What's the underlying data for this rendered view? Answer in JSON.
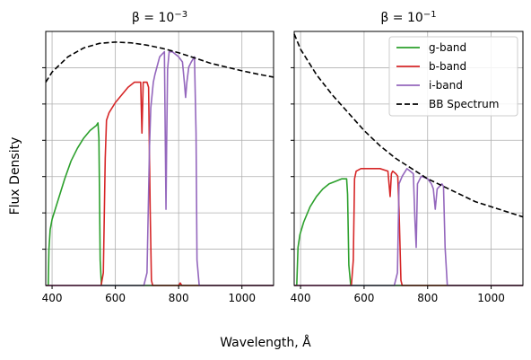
{
  "figure": {
    "xlabel": "Wavelength, Å",
    "ylabel": "Flux Density"
  },
  "legend": {
    "placement": "top-right",
    "entries": [
      {
        "label": "g-band",
        "color": "#2ca02c",
        "style": "solid"
      },
      {
        "label": "b-band",
        "color": "#d62728",
        "style": "solid"
      },
      {
        "label": "i-band",
        "color": "#9467bd",
        "style": "solid"
      },
      {
        "label": "BB Spectrum",
        "color": "#000000",
        "style": "dashed"
      }
    ]
  },
  "chart_data": [
    {
      "type": "line",
      "title_prefix": "β = 10",
      "title_exponent": "−3",
      "xlim": [
        380,
        1100
      ],
      "ylim": [
        0,
        1
      ],
      "xticks": [
        400,
        600,
        800,
        1000
      ],
      "grid": true,
      "series": [
        {
          "name": "g-band",
          "color": "#2ca02c",
          "style": "solid",
          "x": [
            380,
            388,
            390,
            394,
            400,
            420,
            440,
            460,
            480,
            500,
            520,
            540,
            545,
            548,
            552,
            556,
            1100
          ],
          "y": [
            0,
            0,
            0.14,
            0.22,
            0.26,
            0.34,
            0.42,
            0.49,
            0.54,
            0.58,
            0.61,
            0.63,
            0.64,
            0.58,
            0.1,
            0,
            0
          ]
        },
        {
          "name": "b-band",
          "color": "#d62728",
          "style": "solid",
          "x": [
            380,
            555,
            562,
            568,
            572,
            580,
            600,
            620,
            640,
            660,
            675,
            680,
            684,
            688,
            692,
            700,
            705,
            710,
            714,
            718,
            800,
            805,
            810,
            1100
          ],
          "y": [
            0,
            0,
            0.05,
            0.5,
            0.65,
            0.68,
            0.72,
            0.75,
            0.78,
            0.8,
            0.8,
            0.8,
            0.6,
            0.8,
            0.8,
            0.8,
            0.78,
            0.3,
            0.02,
            0,
            0,
            0.01,
            0,
            0
          ]
        },
        {
          "name": "i-band",
          "color": "#9467bd",
          "style": "solid",
          "x": [
            380,
            690,
            700,
            708,
            712,
            716,
            720,
            725,
            740,
            755,
            758,
            760,
            762,
            765,
            770,
            780,
            800,
            812,
            818,
            822,
            826,
            832,
            840,
            850,
            855,
            858,
            865,
            1100
          ],
          "y": [
            0,
            0,
            0.05,
            0.55,
            0.7,
            0.75,
            0.8,
            0.83,
            0.9,
            0.92,
            0.55,
            0.3,
            0.55,
            0.85,
            0.92,
            0.92,
            0.9,
            0.88,
            0.8,
            0.74,
            0.8,
            0.86,
            0.88,
            0.9,
            0.6,
            0.1,
            0,
            0
          ]
        },
        {
          "name": "BB Spectrum",
          "color": "#000000",
          "style": "dashed",
          "x": [
            380,
            400,
            450,
            500,
            550,
            600,
            650,
            700,
            750,
            800,
            850,
            900,
            950,
            1000,
            1050,
            1100
          ],
          "y": [
            0.8,
            0.84,
            0.9,
            0.935,
            0.953,
            0.958,
            0.955,
            0.946,
            0.933,
            0.916,
            0.896,
            0.875,
            0.86,
            0.845,
            0.832,
            0.82
          ]
        }
      ]
    },
    {
      "type": "line",
      "title_prefix": "β = 10",
      "title_exponent": "−1",
      "xlim": [
        380,
        1100
      ],
      "ylim": [
        0,
        1
      ],
      "xticks": [
        400,
        600,
        800,
        1000
      ],
      "grid": true,
      "series": [
        {
          "name": "g-band",
          "color": "#2ca02c",
          "style": "solid",
          "x": [
            380,
            388,
            392,
            398,
            410,
            430,
            450,
            470,
            490,
            510,
            530,
            545,
            548,
            552,
            558,
            1100
          ],
          "y": [
            0,
            0,
            0.15,
            0.2,
            0.25,
            0.31,
            0.35,
            0.38,
            0.4,
            0.41,
            0.42,
            0.42,
            0.36,
            0.08,
            0,
            0
          ]
        },
        {
          "name": "b-band",
          "color": "#d62728",
          "style": "solid",
          "x": [
            380,
            560,
            566,
            570,
            575,
            590,
            620,
            650,
            675,
            682,
            686,
            690,
            700,
            706,
            710,
            716,
            720,
            1100
          ],
          "y": [
            0,
            0,
            0.1,
            0.42,
            0.45,
            0.46,
            0.46,
            0.46,
            0.45,
            0.35,
            0.44,
            0.45,
            0.44,
            0.43,
            0.3,
            0.02,
            0,
            0
          ]
        },
        {
          "name": "i-band",
          "color": "#9467bd",
          "style": "solid",
          "x": [
            380,
            695,
            705,
            710,
            720,
            735,
            745,
            755,
            760,
            764,
            768,
            780,
            800,
            812,
            818,
            824,
            830,
            845,
            850,
            855,
            862,
            1100
          ],
          "y": [
            0,
            0,
            0.05,
            0.4,
            0.43,
            0.46,
            0.45,
            0.44,
            0.26,
            0.15,
            0.4,
            0.43,
            0.42,
            0.4,
            0.38,
            0.3,
            0.38,
            0.4,
            0.39,
            0.15,
            0,
            0
          ]
        },
        {
          "name": "BB Spectrum",
          "color": "#000000",
          "style": "dashed",
          "x": [
            380,
            400,
            450,
            500,
            550,
            600,
            650,
            700,
            750,
            800,
            850,
            900,
            950,
            1000,
            1050,
            1100
          ],
          "y": [
            0.99,
            0.93,
            0.83,
            0.75,
            0.68,
            0.61,
            0.55,
            0.5,
            0.46,
            0.42,
            0.39,
            0.36,
            0.33,
            0.31,
            0.29,
            0.27
          ]
        }
      ]
    }
  ]
}
